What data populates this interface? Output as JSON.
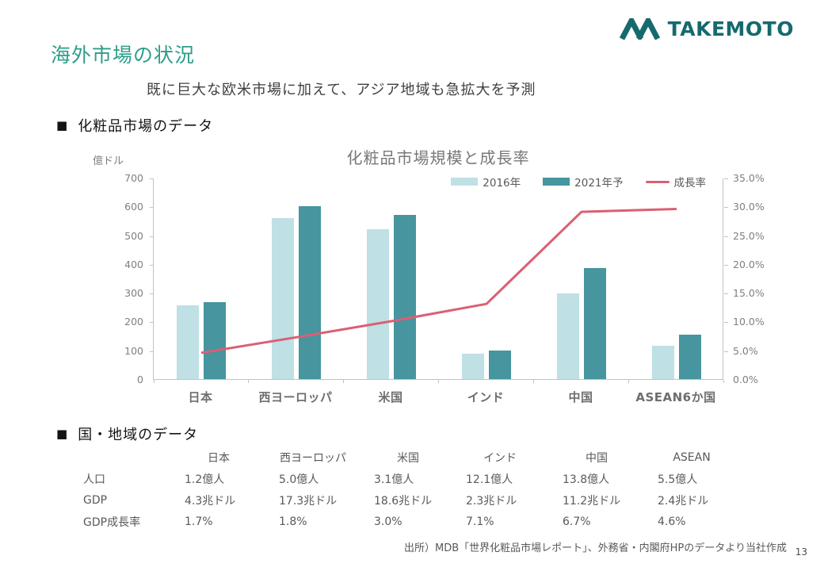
{
  "slide": {
    "title": "海外市場の状況",
    "subtitle": "既に巨大な欧米市場に加えて、アジア地域も急拡大を予測",
    "source_note": "出所）MDB「世界化粧品市場レポート」、外務省・内閣府HPのデータより当社作成",
    "page_number": "13"
  },
  "logo": {
    "text": "TAKEMOTO",
    "color": "#156a6e"
  },
  "sections": {
    "cosmetics": {
      "bullet": "■",
      "label": "化粧品市場のデータ"
    },
    "countries": {
      "bullet": "■",
      "label": "国・地域のデータ"
    }
  },
  "chart_data": {
    "type": "bar",
    "subtype": "grouped bars + line on secondary axis",
    "title": "化粧品市場規模と成長率",
    "unit_label": "億ドル",
    "categories": [
      "日本",
      "西ヨーロッパ",
      "米国",
      "インド",
      "中国",
      "ASEAN6か国"
    ],
    "series": [
      {
        "name": "2016年",
        "type": "bar",
        "color": "#bfe0e4",
        "axis": "left",
        "values": [
          255,
          560,
          520,
          87,
          297,
          117
        ]
      },
      {
        "name": "2021年予",
        "type": "bar",
        "color": "#46959f",
        "axis": "left",
        "values": [
          268,
          600,
          570,
          100,
          385,
          155
        ]
      },
      {
        "name": "成長率",
        "type": "line",
        "color": "#db5f73",
        "axis": "right",
        "values": [
          4.7,
          7.4,
          10.2,
          13.2,
          29.2,
          29.7
        ]
      }
    ],
    "left_axis": {
      "min": 0,
      "max": 700,
      "ticks": [
        "700",
        "600",
        "500",
        "400",
        "300",
        "200",
        "100",
        "0"
      ]
    },
    "right_axis": {
      "min": 0,
      "max": 35,
      "ticks": [
        "35.0%",
        "30.0%",
        "25.0%",
        "20.0%",
        "15.0%",
        "10.0%",
        "5.0%",
        "0.0%"
      ]
    },
    "grid": "off",
    "legend_position": "top-right inside plot area"
  },
  "table": {
    "columns": [
      "日本",
      "西ヨーロッパ",
      "米国",
      "インド",
      "中国",
      "ASEAN"
    ],
    "rows": [
      {
        "label": "人口",
        "values": [
          "1.2億人",
          "5.0億人",
          "3.1億人",
          "12.1億人",
          "13.8億人",
          "5.5億人"
        ]
      },
      {
        "label": "GDP",
        "values": [
          "4.3兆ドル",
          "17.3兆ドル",
          "18.6兆ドル",
          "2.3兆ドル",
          "11.2兆ドル",
          "2.4兆ドル"
        ]
      },
      {
        "label": "GDP成長率",
        "values": [
          "1.7%",
          "1.8%",
          "3.0%",
          "7.1%",
          "6.7%",
          "4.6%"
        ]
      }
    ]
  }
}
